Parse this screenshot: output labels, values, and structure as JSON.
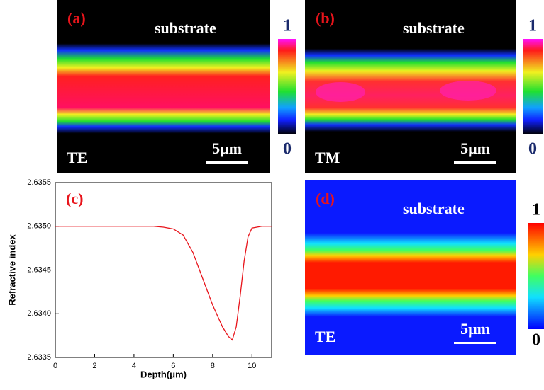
{
  "panels": [
    {
      "label": "(a)",
      "text": "substrate",
      "mode": "TE",
      "scale_bar": "5μm",
      "colorbar_ticks": [
        1,
        0
      ]
    },
    {
      "label": "(b)",
      "text": "substrate",
      "mode": "TM",
      "scale_bar": "5μm",
      "colorbar_ticks": [
        1,
        0
      ]
    },
    {
      "label": "(d)",
      "text": "substrate",
      "mode": "TE",
      "scale_bar": "5μm",
      "colorbar_ticks": [
        1,
        0
      ]
    }
  ],
  "chart_data": {
    "type": "line",
    "label": "(c)",
    "x_label": "Depth(μm)",
    "y_label": "Refractive index",
    "x": [
      0,
      2,
      4,
      5,
      5.5,
      6,
      6.5,
      7,
      7.5,
      8,
      8.5,
      8.8,
      9,
      9.2,
      9.4,
      9.6,
      9.8,
      10,
      10.5,
      11
    ],
    "series": [
      {
        "color": "#e8141b",
        "values": [
          2.635,
          2.635,
          2.635,
          2.635,
          2.63499,
          2.63497,
          2.6349,
          2.6347,
          2.6344,
          2.6341,
          2.63385,
          2.63374,
          2.6337,
          2.63385,
          2.6342,
          2.6346,
          2.63488,
          2.63498,
          2.635,
          2.635
        ]
      }
    ],
    "xlim": [
      0,
      11
    ],
    "ylim": [
      2.6335,
      2.6355
    ],
    "xticks": [
      0,
      2,
      4,
      6,
      8,
      10
    ],
    "yticks": [
      2.6335,
      {
        "value": 2.634,
        "label": "2.6340"
      },
      2.6345,
      {
        "value": 2.635,
        "label": "2.6350"
      },
      2.6355
    ]
  }
}
